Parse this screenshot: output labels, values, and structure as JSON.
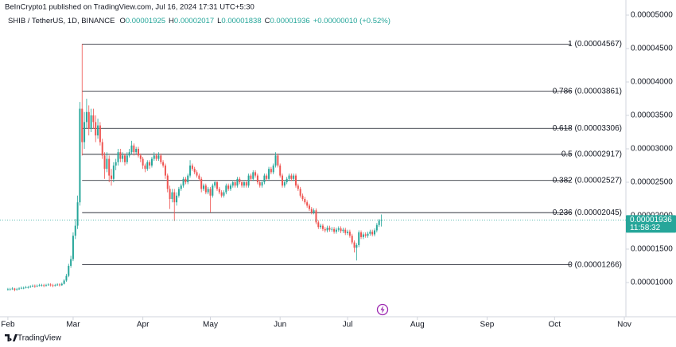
{
  "header": {
    "published": "BeInCrypto1 published on TradingView.com, Jul 16, 2024 17:31 UTC+5:30",
    "symbol": "SHIB / TetherUS, 1D, BINANCE",
    "o_label": "O",
    "o": "0.00001925",
    "h_label": "H",
    "h": "0.00002017",
    "l_label": "L",
    "l": "0.00001838",
    "c_label": "C",
    "c": "0.00001936",
    "change": "+0.00000010 (+0.52%)"
  },
  "footer": {
    "brand": "TradingView"
  },
  "chart_data": {
    "type": "candlestick",
    "up_color": "#26a69a",
    "down_color": "#ef5350",
    "ylim": [
      4.88e-06,
      5.226e-05
    ],
    "yticks": [
      {
        "value": 1e-05,
        "label": "0.00001000"
      },
      {
        "value": 1.5e-05,
        "label": "0.00001500"
      },
      {
        "value": 2e-05,
        "label": "0.00002000"
      },
      {
        "value": 2.5e-05,
        "label": "0.00002500"
      },
      {
        "value": 3e-05,
        "label": "0.00003000"
      },
      {
        "value": 3.5e-05,
        "label": "0.00003500"
      },
      {
        "value": 4e-05,
        "label": "0.00004000"
      },
      {
        "value": 4.5e-05,
        "label": "0.00004500"
      },
      {
        "value": 5e-05,
        "label": "0.00005000"
      }
    ],
    "xlim": [
      -3.5,
      274.7
    ],
    "xticks": [
      {
        "value": 0,
        "label": "Feb"
      },
      {
        "value": 29,
        "label": "Mar"
      },
      {
        "value": 60,
        "label": "Apr"
      },
      {
        "value": 90,
        "label": "May"
      },
      {
        "value": 121,
        "label": "Jun"
      },
      {
        "value": 151,
        "label": "Jul"
      },
      {
        "value": 182,
        "label": "Aug"
      },
      {
        "value": 213,
        "label": "Sep"
      },
      {
        "value": 243,
        "label": "Oct"
      },
      {
        "value": 274,
        "label": "Nov"
      }
    ],
    "fib_levels": [
      {
        "label": "1 (0.00004567)",
        "value": 4.567e-05
      },
      {
        "label": "0.786 (0.00003861)",
        "value": 3.861e-05
      },
      {
        "label": "0.618 (0.00003306)",
        "value": 3.306e-05
      },
      {
        "label": "0.5 (0.00002917)",
        "value": 2.917e-05
      },
      {
        "label": "0.382 (0.00002527)",
        "value": 2.527e-05
      },
      {
        "label": "0.236 (0.00002045)",
        "value": 2.045e-05
      },
      {
        "label": "0 (0.00001266)",
        "value": 1.266e-05
      }
    ],
    "last_price": {
      "value": 1.936e-05,
      "label": "0.00001936"
    },
    "countdown": "11:58:32",
    "candles": [
      [
        8.9e-06,
        9.2e-06,
        8.8e-06,
        9e-06
      ],
      [
        9e-06,
        9.2e-06,
        8.8e-06,
        9e-06
      ],
      [
        9e-06,
        9.3e-06,
        8.9e-06,
        9.1e-06
      ],
      [
        9.1e-06,
        9.2e-06,
        8.7e-06,
        8.9e-06
      ],
      [
        8.9e-06,
        9.2e-06,
        8.8e-06,
        9e-06
      ],
      [
        9e-06,
        9.3e-06,
        8.9e-06,
        9.1e-06
      ],
      [
        9.1e-06,
        9.4e-06,
        9e-06,
        9.2e-06
      ],
      [
        9.2e-06,
        9.4e-06,
        9e-06,
        9.2e-06
      ],
      [
        9.2e-06,
        9.5e-06,
        9.1e-06,
        9.3e-06
      ],
      [
        9.3e-06,
        9.5e-06,
        9.1e-06,
        9.3e-06
      ],
      [
        9.3e-06,
        9.6e-06,
        9.2e-06,
        9.4e-06
      ],
      [
        9.4e-06,
        9.7e-06,
        9.3e-06,
        9.5e-06
      ],
      [
        9.5e-06,
        9.7e-06,
        9.2e-06,
        9.4e-06
      ],
      [
        9.4e-06,
        9.7e-06,
        9.3e-06,
        9.5e-06
      ],
      [
        9.5e-06,
        9.8e-06,
        9.4e-06,
        9.6e-06
      ],
      [
        9.6e-06,
        9.8e-06,
        9.4e-06,
        9.6e-06
      ],
      [
        9.6e-06,
        9.8e-06,
        9.3e-06,
        9.5e-06
      ],
      [
        9.5e-06,
        9.8e-06,
        9.4e-06,
        9.6e-06
      ],
      [
        9.6e-06,
        9.9e-06,
        9.5e-06,
        9.7e-06
      ],
      [
        9.7e-06,
        9.9e-06,
        9.4e-06,
        9.6e-06
      ],
      [
        9.6e-06,
        9.8e-06,
        9.3e-06,
        9.5e-06
      ],
      [
        9.5e-06,
        9.8e-06,
        9.4e-06,
        9.6e-06
      ],
      [
        9.6e-06,
        9.9e-06,
        9.5e-06,
        9.7e-06
      ],
      [
        9.7e-06,
        9.9e-06,
        9.4e-06,
        9.6e-06
      ],
      [
        9.6e-06,
        1e-05,
        9.5e-06,
        9.8e-06
      ],
      [
        9.8e-06,
        1.05e-05,
        9.7e-06,
        1.03e-05
      ],
      [
        1.03e-05,
        1.13e-05,
        1.01e-05,
        1.1e-05
      ],
      [
        1.1e-05,
        1.28e-05,
        1.08e-05,
        1.25e-05
      ],
      [
        1.25e-05,
        1.4e-05,
        1.22e-05,
        1.35e-05
      ],
      [
        1.35e-05,
        1.75e-05,
        1.32e-05,
        1.7e-05
      ],
      [
        1.7e-05,
        1.95e-05,
        1.65e-05,
        1.85e-05
      ],
      [
        1.85e-05,
        2.3e-05,
        1.8e-05,
        2.2e-05
      ],
      [
        2.2e-05,
        3.7e-05,
        2.15e-05,
        3.6e-05
      ],
      [
        3.6e-05,
        4.567e-05,
        2.9e-05,
        3.1e-05
      ],
      [
        3.1e-05,
        3.55e-05,
        3e-05,
        3.4e-05
      ],
      [
        3.4e-05,
        3.75e-05,
        3.3e-05,
        3.55e-05
      ],
      [
        3.55e-05,
        3.65e-05,
        3.2e-05,
        3.3e-05
      ],
      [
        3.3e-05,
        3.6e-05,
        3.25e-05,
        3.5e-05
      ],
      [
        3.5e-05,
        3.6e-05,
        3.3e-05,
        3.4e-05
      ],
      [
        3.4e-05,
        3.5e-05,
        3.1e-05,
        3.2e-05
      ],
      [
        3.2e-05,
        3.45e-05,
        3.15e-05,
        3.35e-05
      ],
      [
        3.35e-05,
        3.4e-05,
        3.05e-05,
        3.1e-05
      ],
      [
        3.1e-05,
        3.15e-05,
        2.85e-05,
        2.9e-05
      ],
      [
        2.9e-05,
        2.95e-05,
        2.55e-05,
        2.7e-05
      ],
      [
        2.7e-05,
        2.95e-05,
        2.65e-05,
        2.85e-05
      ],
      [
        2.85e-05,
        2.9e-05,
        2.5e-05,
        2.6e-05
      ],
      [
        2.6e-05,
        2.7e-05,
        2.45e-05,
        2.55e-05
      ],
      [
        2.55e-05,
        2.8e-05,
        2.5e-05,
        2.75e-05
      ],
      [
        2.75e-05,
        2.85e-05,
        2.68e-05,
        2.8e-05
      ],
      [
        2.8e-05,
        3e-05,
        2.75e-05,
        2.95e-05
      ],
      [
        2.95e-05,
        3e-05,
        2.8e-05,
        2.85e-05
      ],
      [
        2.85e-05,
        2.95e-05,
        2.8e-05,
        2.9e-05
      ],
      [
        2.9e-05,
        2.93e-05,
        2.75e-05,
        2.8e-05
      ],
      [
        2.8e-05,
        2.95e-05,
        2.77e-05,
        2.9e-05
      ],
      [
        2.9e-05,
        3e-05,
        2.87e-05,
        2.95e-05
      ],
      [
        2.95e-05,
        3.12e-05,
        2.92e-05,
        3.05e-05
      ],
      [
        3.05e-05,
        3.08e-05,
        2.9e-05,
        2.95e-05
      ],
      [
        2.95e-05,
        3.03e-05,
        2.92e-05,
        3e-05
      ],
      [
        3e-05,
        3.03e-05,
        2.87e-05,
        2.9e-05
      ],
      [
        2.9e-05,
        2.93e-05,
        2.8e-05,
        2.85e-05
      ],
      [
        2.85e-05,
        2.88e-05,
        2.7e-05,
        2.75e-05
      ],
      [
        2.75e-05,
        2.78e-05,
        2.65e-05,
        2.7e-05
      ],
      [
        2.7e-05,
        2.83e-05,
        2.67e-05,
        2.8e-05
      ],
      [
        2.8e-05,
        2.83e-05,
        2.7e-05,
        2.75e-05
      ],
      [
        2.75e-05,
        2.88e-05,
        2.72e-05,
        2.85e-05
      ],
      [
        2.85e-05,
        2.95e-05,
        2.82e-05,
        2.9e-05
      ],
      [
        2.9e-05,
        2.93e-05,
        2.82e-05,
        2.85e-05
      ],
      [
        2.85e-05,
        2.95e-05,
        2.82e-05,
        2.9e-05
      ],
      [
        2.9e-05,
        2.93e-05,
        2.77e-05,
        2.8e-05
      ],
      [
        2.8e-05,
        2.83e-05,
        2.72e-05,
        2.75e-05
      ],
      [
        2.75e-05,
        2.78e-05,
        2.55e-05,
        2.6e-05
      ],
      [
        2.6e-05,
        2.63e-05,
        2.35e-05,
        2.4e-05
      ],
      [
        2.4e-05,
        2.45e-05,
        2.1e-05,
        2.25e-05
      ],
      [
        2.25e-05,
        2.4e-05,
        2.2e-05,
        2.35e-05
      ],
      [
        2.35e-05,
        2.4e-05,
        1.92e-05,
        2.2e-05
      ],
      [
        2.2e-05,
        2.35e-05,
        2.15e-05,
        2.3e-05
      ],
      [
        2.3e-05,
        2.43e-05,
        2.27e-05,
        2.4e-05
      ],
      [
        2.4e-05,
        2.48e-05,
        2.37e-05,
        2.45e-05
      ],
      [
        2.45e-05,
        2.58e-05,
        2.42e-05,
        2.55e-05
      ],
      [
        2.55e-05,
        2.58e-05,
        2.47e-05,
        2.5e-05
      ],
      [
        2.5e-05,
        2.63e-05,
        2.47e-05,
        2.6e-05
      ],
      [
        2.6e-05,
        2.83e-05,
        2.57e-05,
        2.75e-05
      ],
      [
        2.75e-05,
        2.78e-05,
        2.67e-05,
        2.7e-05
      ],
      [
        2.7e-05,
        2.73e-05,
        2.62e-05,
        2.65e-05
      ],
      [
        2.65e-05,
        2.68e-05,
        2.57e-05,
        2.6e-05
      ],
      [
        2.6e-05,
        2.63e-05,
        2.52e-05,
        2.55e-05
      ],
      [
        2.55e-05,
        2.58e-05,
        2.35e-05,
        2.4e-05
      ],
      [
        2.4e-05,
        2.48e-05,
        2.37e-05,
        2.45e-05
      ],
      [
        2.45e-05,
        2.48e-05,
        2.32e-05,
        2.35e-05
      ],
      [
        2.35e-05,
        2.43e-05,
        2.32e-05,
        2.4e-05
      ],
      [
        2.4e-05,
        2.43e-05,
        2.05e-05,
        2.3e-05
      ],
      [
        2.3e-05,
        2.48e-05,
        2.27e-05,
        2.45e-05
      ],
      [
        2.45e-05,
        2.53e-05,
        2.42e-05,
        2.5e-05
      ],
      [
        2.5e-05,
        2.53e-05,
        2.37e-05,
        2.4e-05
      ],
      [
        2.4e-05,
        2.43e-05,
        2.32e-05,
        2.35e-05
      ],
      [
        2.35e-05,
        2.38e-05,
        2.27e-05,
        2.3e-05
      ],
      [
        2.3e-05,
        2.38e-05,
        2.27e-05,
        2.35e-05
      ],
      [
        2.35e-05,
        2.48e-05,
        2.32e-05,
        2.45e-05
      ],
      [
        2.45e-05,
        2.48e-05,
        2.37e-05,
        2.4e-05
      ],
      [
        2.4e-05,
        2.48e-05,
        2.37e-05,
        2.45e-05
      ],
      [
        2.45e-05,
        2.53e-05,
        2.42e-05,
        2.5e-05
      ],
      [
        2.5e-05,
        2.53e-05,
        2.42e-05,
        2.45e-05
      ],
      [
        2.45e-05,
        2.58e-05,
        2.42e-05,
        2.55e-05
      ],
      [
        2.55e-05,
        2.58e-05,
        2.47e-05,
        2.5e-05
      ],
      [
        2.5e-05,
        2.53e-05,
        2.42e-05,
        2.45e-05
      ],
      [
        2.45e-05,
        2.53e-05,
        2.42e-05,
        2.5e-05
      ],
      [
        2.5e-05,
        2.53e-05,
        2.42e-05,
        2.45e-05
      ],
      [
        2.45e-05,
        2.63e-05,
        2.42e-05,
        2.6e-05
      ],
      [
        2.6e-05,
        2.63e-05,
        2.52e-05,
        2.55e-05
      ],
      [
        2.55e-05,
        2.68e-05,
        2.52e-05,
        2.65e-05
      ],
      [
        2.65e-05,
        2.68e-05,
        2.57e-05,
        2.6e-05
      ],
      [
        2.6e-05,
        2.63e-05,
        2.47e-05,
        2.5e-05
      ],
      [
        2.5e-05,
        2.53e-05,
        2.42e-05,
        2.45e-05
      ],
      [
        2.45e-05,
        2.53e-05,
        2.42e-05,
        2.5e-05
      ],
      [
        2.5e-05,
        2.63e-05,
        2.47e-05,
        2.6e-05
      ],
      [
        2.6e-05,
        2.63e-05,
        2.52e-05,
        2.55e-05
      ],
      [
        2.55e-05,
        2.73e-05,
        2.52e-05,
        2.7e-05
      ],
      [
        2.7e-05,
        2.73e-05,
        2.62e-05,
        2.65e-05
      ],
      [
        2.65e-05,
        2.78e-05,
        2.62e-05,
        2.75e-05
      ],
      [
        2.75e-05,
        2.95e-05,
        2.72e-05,
        2.9e-05
      ],
      [
        2.9e-05,
        2.93e-05,
        2.72e-05,
        2.75e-05
      ],
      [
        2.75e-05,
        2.78e-05,
        2.57e-05,
        2.6e-05
      ],
      [
        2.6e-05,
        2.63e-05,
        2.42e-05,
        2.45e-05
      ],
      [
        2.45e-05,
        2.53e-05,
        2.42e-05,
        2.5e-05
      ],
      [
        2.5e-05,
        2.58e-05,
        2.47e-05,
        2.55e-05
      ],
      [
        2.55e-05,
        2.63e-05,
        2.52e-05,
        2.6e-05
      ],
      [
        2.6e-05,
        2.63e-05,
        2.52e-05,
        2.55e-05
      ],
      [
        2.55e-05,
        2.63e-05,
        2.52e-05,
        2.6e-05
      ],
      [
        2.6e-05,
        2.63e-05,
        2.42e-05,
        2.45e-05
      ],
      [
        2.45e-05,
        2.48e-05,
        2.37e-05,
        2.4e-05
      ],
      [
        2.4e-05,
        2.43e-05,
        2.27e-05,
        2.3e-05
      ],
      [
        2.3e-05,
        2.33e-05,
        2.22e-05,
        2.25e-05
      ],
      [
        2.25e-05,
        2.28e-05,
        2.17e-05,
        2.2e-05
      ],
      [
        2.2e-05,
        2.23e-05,
        2.12e-05,
        2.15e-05
      ],
      [
        2.15e-05,
        2.18e-05,
        2.07e-05,
        2.1e-05
      ],
      [
        2.1e-05,
        2.13e-05,
        2.02e-05,
        2.05e-05
      ],
      [
        2.05e-05,
        2.11e-05,
        2.02e-05,
        2.08e-05
      ],
      [
        2.08e-05,
        2.11e-05,
        1.87e-05,
        1.9e-05
      ],
      [
        1.9e-05,
        1.93e-05,
        1.8e-05,
        1.83e-05
      ],
      [
        1.83e-05,
        1.88e-05,
        1.8e-05,
        1.85e-05
      ],
      [
        1.85e-05,
        1.88e-05,
        1.77e-05,
        1.8e-05
      ],
      [
        1.8e-05,
        1.83e-05,
        1.75e-05,
        1.78e-05
      ],
      [
        1.78e-05,
        1.85e-05,
        1.75e-05,
        1.82e-05
      ],
      [
        1.82e-05,
        1.85e-05,
        1.76e-05,
        1.79e-05
      ],
      [
        1.79e-05,
        1.83e-05,
        1.76e-05,
        1.8e-05
      ],
      [
        1.8e-05,
        1.83e-05,
        1.73e-05,
        1.76e-05
      ],
      [
        1.76e-05,
        1.82e-05,
        1.73e-05,
        1.79e-05
      ],
      [
        1.79e-05,
        1.84e-05,
        1.76e-05,
        1.81e-05
      ],
      [
        1.81e-05,
        1.84e-05,
        1.74e-05,
        1.77e-05
      ],
      [
        1.77e-05,
        1.82e-05,
        1.74e-05,
        1.79e-05
      ],
      [
        1.79e-05,
        1.82e-05,
        1.71e-05,
        1.74e-05
      ],
      [
        1.74e-05,
        1.79e-05,
        1.71e-05,
        1.76e-05
      ],
      [
        1.76e-05,
        1.79e-05,
        1.67e-05,
        1.7e-05
      ],
      [
        1.7e-05,
        1.73e-05,
        1.57e-05,
        1.6e-05
      ],
      [
        1.6e-05,
        1.63e-05,
        1.45e-05,
        1.52e-05
      ],
      [
        1.52e-05,
        1.59e-05,
        1.33e-05,
        1.56e-05
      ],
      [
        1.56e-05,
        1.78e-05,
        1.53e-05,
        1.75e-05
      ],
      [
        1.75e-05,
        1.78e-05,
        1.65e-05,
        1.68e-05
      ],
      [
        1.68e-05,
        1.75e-05,
        1.65e-05,
        1.72e-05
      ],
      [
        1.72e-05,
        1.75e-05,
        1.67e-05,
        1.7e-05
      ],
      [
        1.7e-05,
        1.76e-05,
        1.67e-05,
        1.73e-05
      ],
      [
        1.73e-05,
        1.79e-05,
        1.7e-05,
        1.76e-05
      ],
      [
        1.76e-05,
        1.79e-05,
        1.69e-05,
        1.72e-05
      ],
      [
        1.72e-05,
        1.81e-05,
        1.69e-05,
        1.78e-05
      ],
      [
        1.78e-05,
        1.89e-05,
        1.75e-05,
        1.86e-05
      ],
      [
        1.86e-05,
        1.95e-05,
        1.83e-05,
        1.925e-05
      ],
      [
        1.925e-05,
        2.017e-05,
        1.838e-05,
        1.936e-05
      ]
    ]
  }
}
